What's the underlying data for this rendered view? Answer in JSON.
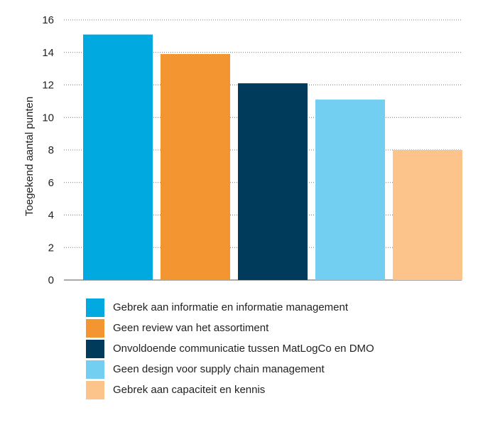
{
  "chart_data": {
    "type": "bar",
    "ylabel": "Toegekend aantal punten",
    "ylim": [
      0,
      16
    ],
    "yticks": [
      0,
      2,
      4,
      6,
      8,
      10,
      12,
      14,
      16
    ],
    "grid": "horizontal dotted",
    "legend_position": "bottom",
    "series": [
      {
        "name": "Gebrek aan informatie en informatie management",
        "value": 15.1,
        "color": "#00a9e0"
      },
      {
        "name": "Geen review van het assortiment",
        "value": 13.9,
        "color": "#f39530"
      },
      {
        "name": "Onvoldoende communicatie tussen MatLogCo en DMO",
        "value": 12.1,
        "color": "#003b5c"
      },
      {
        "name": "Geen design voor supply chain management",
        "value": 11.1,
        "color": "#72cff2"
      },
      {
        "name": "Gebrek aan capaciteit en kennis",
        "value": 8.0,
        "color": "#fcc38a"
      }
    ]
  }
}
